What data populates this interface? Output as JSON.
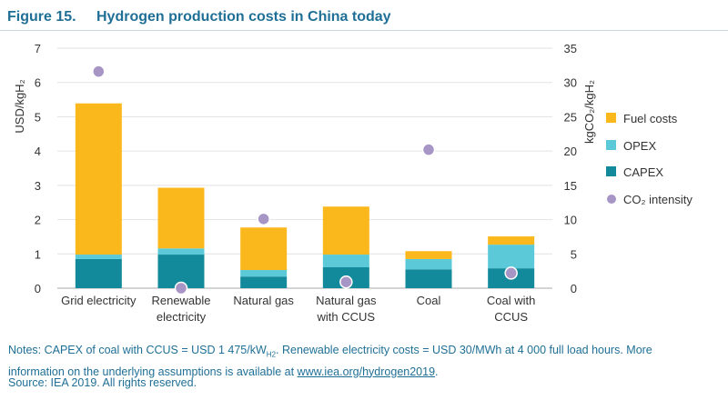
{
  "figure": {
    "number": "Figure 15.",
    "title": "Hydrogen production costs in China today"
  },
  "chart_data": {
    "type": "bar",
    "stacked": true,
    "title": "Hydrogen production costs in China today",
    "categories": [
      [
        "Grid electricity"
      ],
      [
        "Renewable",
        "electricity"
      ],
      [
        "Natural gas"
      ],
      [
        "Natural gas",
        "with CCUS"
      ],
      [
        "Coal"
      ],
      [
        "Coal with",
        "CCUS"
      ]
    ],
    "series": [
      {
        "name": "CAPEX",
        "color": "#138a9c",
        "values": [
          0.85,
          0.98,
          0.34,
          0.61,
          0.55,
          0.58
        ]
      },
      {
        "name": "OPEX",
        "color": "#5cc9d8",
        "values": [
          0.13,
          0.18,
          0.19,
          0.37,
          0.3,
          0.69
        ]
      },
      {
        "name": "Fuel costs",
        "color": "#fbb81c",
        "values": [
          4.41,
          1.77,
          1.24,
          1.4,
          0.23,
          0.24
        ]
      }
    ],
    "secondary_series": {
      "name": "CO₂ intensity",
      "color": "#a795c6",
      "type": "scatter",
      "values": [
        31.6,
        0.0,
        10.1,
        0.9,
        20.2,
        2.2
      ]
    },
    "ylabel": "USD/kgH₂",
    "ylim": [
      0,
      7
    ],
    "yticks": [
      "0",
      "1",
      "2",
      "3",
      "4",
      "5",
      "6",
      "7"
    ],
    "y2label": "kgCO₂/kgH₂",
    "y2lim": [
      0,
      35
    ],
    "y2ticks": [
      "0",
      "5",
      "10",
      "15",
      "20",
      "25",
      "30",
      "35"
    ],
    "legend_order": [
      "Fuel costs",
      "OPEX",
      "CAPEX",
      "CO₂ intensity"
    ],
    "legend_placement": "right",
    "grid": true
  },
  "notes": {
    "prefix": "Notes: CAPEX of coal with CCUS = USD 1 475/kW",
    "sub": "H2",
    "middle": ". Renewable electricity costs = USD 30/MWh at 4 000 full load hours. More information on the underlying assumptions is available at ",
    "link": "www.iea.org/hydrogen2019",
    "end": "."
  },
  "source": "Source: IEA 2019. All rights reserved."
}
